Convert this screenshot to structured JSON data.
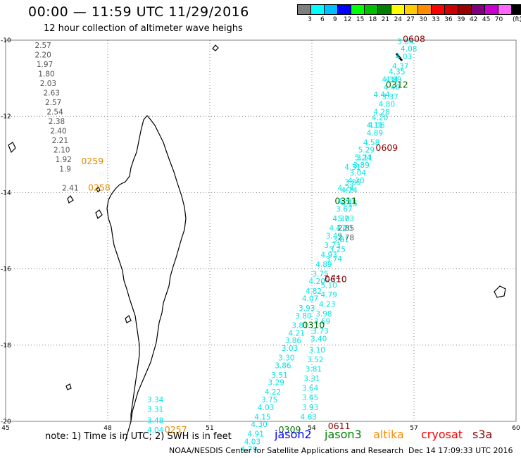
{
  "header": {
    "title": "00:00 — 11:59 UTC 11/29/2016",
    "subtitle": "12 hour collection of altimeter wave heighs"
  },
  "scale": {
    "colors": [
      "#7f7f7f",
      "#00ffff",
      "#00bfff",
      "#0000ff",
      "#00ff00",
      "#00c000",
      "#008000",
      "#ffff00",
      "#ffcc00",
      "#ff8c00",
      "#ff0000",
      "#cc0000",
      "#990000",
      "#800080",
      "#cc00cc",
      "#ff66ff",
      "#000000"
    ],
    "labels": [
      "3",
      "6",
      "9",
      "12",
      "15",
      "18",
      "21",
      "24",
      "27",
      "30",
      "33",
      "36",
      "39",
      "42",
      "45",
      "70"
    ],
    "unit": "(ft)"
  },
  "map": {
    "lat_labels": [
      "-10",
      "-12",
      "-14",
      "-16",
      "-18",
      "-20"
    ],
    "lon_labels": [
      "45",
      "48",
      "51",
      "54",
      "57",
      "60"
    ],
    "coastline_color": "#000000",
    "grid_color": "#7f7f7f"
  },
  "tracks": [
    {
      "satellite": "jason2",
      "color": "#00e5e5",
      "label": "",
      "points": [
        {
          "lon": 56.75,
          "lat": -10.1,
          "v": "3.84"
        },
        {
          "lon": 56.85,
          "lat": -10.3,
          "v": "4.08"
        },
        {
          "lon": 56.7,
          "lat": -10.5,
          "v": "4.03"
        },
        {
          "lon": 56.6,
          "lat": -10.75,
          "v": "4.37"
        },
        {
          "lon": 56.5,
          "lat": -10.9,
          "v": "4.35"
        },
        {
          "lon": 56.4,
          "lat": -11.1,
          "v": "4.89"
        },
        {
          "lon": 56.35,
          "lat": -11.3,
          "v": "4.40"
        },
        {
          "lon": 56.3,
          "lat": -11.55,
          "v": "3.37"
        },
        {
          "lon": 56.2,
          "lat": -11.75,
          "v": "4.80"
        },
        {
          "lon": 56.05,
          "lat": -11.95,
          "v": "4.28"
        },
        {
          "lon": 56.0,
          "lat": -12.1,
          "v": "4.20"
        },
        {
          "lon": 55.9,
          "lat": -12.3,
          "v": "4.06"
        },
        {
          "lon": 55.85,
          "lat": -12.5,
          "v": "4.89"
        },
        {
          "lon": 55.75,
          "lat": -12.75,
          "v": "4.58"
        },
        {
          "lon": 55.6,
          "lat": -12.95,
          "v": "5.29"
        },
        {
          "lon": 55.55,
          "lat": -13.15,
          "v": "3.11"
        },
        {
          "lon": 55.45,
          "lat": -13.35,
          "v": "3.89"
        },
        {
          "lon": 55.35,
          "lat": -13.55,
          "v": "3.04"
        },
        {
          "lon": 55.3,
          "lat": -13.75,
          "v": "4.20"
        },
        {
          "lon": 55.0,
          "lat": -13.95,
          "v": "4.24"
        },
        {
          "lon": 55.1,
          "lat": -14.35,
          "v": "4.15"
        },
        {
          "lon": 55.0,
          "lat": -14.75,
          "v": "5.03"
        },
        {
          "lon": 54.95,
          "lat": -15.0,
          "v": "4.20"
        },
        {
          "lon": 54.85,
          "lat": -15.3,
          "v": "3.81"
        },
        {
          "lon": 54.75,
          "lat": -15.55,
          "v": "3.25"
        },
        {
          "lon": 54.65,
          "lat": -15.8,
          "v": "3.74"
        },
        {
          "lon": 54.5,
          "lat": -16.5,
          "v": "5.10"
        },
        {
          "lon": 54.5,
          "lat": -16.75,
          "v": "4.79"
        },
        {
          "lon": 54.45,
          "lat": -17.0,
          "v": "4.23"
        },
        {
          "lon": 54.35,
          "lat": -17.25,
          "v": "3.98"
        },
        {
          "lon": 54.3,
          "lat": -17.45,
          "v": "3.69"
        },
        {
          "lon": 54.25,
          "lat": -17.7,
          "v": "3.73"
        },
        {
          "lon": 54.2,
          "lat": -17.9,
          "v": "3.40"
        },
        {
          "lon": 54.15,
          "lat": -18.2,
          "v": "3.10"
        },
        {
          "lon": 54.1,
          "lat": -18.45,
          "v": "3.52"
        },
        {
          "lon": 54.05,
          "lat": -18.7,
          "v": "3.81"
        },
        {
          "lon": 54.0,
          "lat": -18.95,
          "v": "3.31"
        },
        {
          "lon": 53.95,
          "lat": -19.2,
          "v": "3.64"
        },
        {
          "lon": 53.95,
          "lat": -19.45,
          "v": "3.65"
        },
        {
          "lon": 53.95,
          "lat": -19.7,
          "v": "3.93"
        },
        {
          "lon": 53.9,
          "lat": -19.95,
          "v": "4.63"
        }
      ]
    },
    {
      "satellite": "jason2-b",
      "color": "#00e5e5",
      "label": "",
      "points": [
        {
          "lon": 56.3,
          "lat": -11.1,
          "v": "4.34"
        },
        {
          "lon": 56.05,
          "lat": -11.5,
          "v": "4.44"
        },
        {
          "lon": 55.85,
          "lat": -12.3,
          "v": "4.11"
        },
        {
          "lon": 55.5,
          "lat": -13.15,
          "v": "5.24"
        },
        {
          "lon": 55.2,
          "lat": -13.4,
          "v": "4.31"
        },
        {
          "lon": 55.2,
          "lat": -13.8,
          "v": "3.85"
        },
        {
          "lon": 55.1,
          "lat": -14.0,
          "v": "4.24"
        },
        {
          "lon": 55.0,
          "lat": -14.3,
          "v": "4.50"
        },
        {
          "lon": 54.95,
          "lat": -14.5,
          "v": "3.67"
        },
        {
          "lon": 54.85,
          "lat": -14.75,
          "v": "4.37"
        },
        {
          "lon": 54.75,
          "lat": -15.0,
          "v": "4.17"
        },
        {
          "lon": 54.65,
          "lat": -15.2,
          "v": "3.49"
        },
        {
          "lon": 54.6,
          "lat": -15.45,
          "v": "3.73"
        },
        {
          "lon": 54.5,
          "lat": -15.7,
          "v": "4.93"
        },
        {
          "lon": 54.35,
          "lat": -15.95,
          "v": "4.89"
        },
        {
          "lon": 54.25,
          "lat": -16.2,
          "v": "3.75"
        },
        {
          "lon": 54.15,
          "lat": -16.4,
          "v": "4.20"
        },
        {
          "lon": 54.05,
          "lat": -16.65,
          "v": "4.82"
        },
        {
          "lon": 53.95,
          "lat": -16.85,
          "v": "4.07"
        },
        {
          "lon": 53.85,
          "lat": -17.1,
          "v": "3.93"
        },
        {
          "lon": 53.75,
          "lat": -17.3,
          "v": "3.80"
        },
        {
          "lon": 53.65,
          "lat": -17.55,
          "v": "3.81"
        },
        {
          "lon": 53.55,
          "lat": -17.75,
          "v": "4.21"
        },
        {
          "lon": 53.45,
          "lat": -17.95,
          "v": "3.86"
        },
        {
          "lon": 53.35,
          "lat": -18.15,
          "v": "3.03"
        },
        {
          "lon": 53.25,
          "lat": -18.4,
          "v": "3.30"
        },
        {
          "lon": 53.15,
          "lat": -18.6,
          "v": "3.86"
        },
        {
          "lon": 53.05,
          "lat": -18.85,
          "v": "3.51"
        },
        {
          "lon": 52.95,
          "lat": -19.05,
          "v": "3.29"
        },
        {
          "lon": 52.85,
          "lat": -19.3,
          "v": "4.22"
        },
        {
          "lon": 52.75,
          "lat": -19.5,
          "v": "3.75"
        },
        {
          "lon": 52.65,
          "lat": -19.7,
          "v": "4.03"
        },
        {
          "lon": 52.55,
          "lat": -19.95,
          "v": "4.15"
        },
        {
          "lon": 52.45,
          "lat": -20.15,
          "v": "4.30"
        },
        {
          "lon": 52.35,
          "lat": -20.4,
          "v": "4.91"
        },
        {
          "lon": 52.25,
          "lat": -20.6,
          "v": "4.03"
        },
        {
          "lon": 52.15,
          "lat": -20.8,
          "v": "4.79"
        }
      ]
    }
  ],
  "gray_track": [
    {
      "lon": 46.1,
      "lat": -10.2,
      "v": "2.57"
    },
    {
      "lon": 46.1,
      "lat": -10.45,
      "v": "2.20"
    },
    {
      "lon": 46.15,
      "lat": -10.7,
      "v": "1.97"
    },
    {
      "lon": 46.2,
      "lat": -10.95,
      "v": "1.80"
    },
    {
      "lon": 46.25,
      "lat": -11.2,
      "v": "2.03"
    },
    {
      "lon": 46.35,
      "lat": -11.45,
      "v": "2.63"
    },
    {
      "lon": 46.4,
      "lat": -11.7,
      "v": "2.57"
    },
    {
      "lon": 46.45,
      "lat": -11.95,
      "v": "2.54"
    },
    {
      "lon": 46.5,
      "lat": -12.2,
      "v": "2.38"
    },
    {
      "lon": 46.55,
      "lat": -12.45,
      "v": "2.40"
    },
    {
      "lon": 46.6,
      "lat": -12.7,
      "v": "2.21"
    },
    {
      "lon": 46.65,
      "lat": -12.95,
      "v": "2.10"
    },
    {
      "lon": 46.7,
      "lat": -13.2,
      "v": "1.92"
    },
    {
      "lon": 46.75,
      "lat": -13.45,
      "v": "1.9"
    },
    {
      "lon": 46.9,
      "lat": -13.95,
      "v": "2.41"
    },
    {
      "lon": 55.0,
      "lat": -15.0,
      "v": "2.85"
    },
    {
      "lon": 55.0,
      "lat": -15.25,
      "v": "2.78"
    },
    {
      "lon": 54.6,
      "lat": -16.3,
      "v": "2.74"
    }
  ],
  "south_cyan": [
    {
      "lon": 49.4,
      "lat": -19.5,
      "v": "3.34"
    },
    {
      "lon": 49.4,
      "lat": -19.75,
      "v": "3.31"
    },
    {
      "lon": 49.4,
      "lat": -20.05,
      "v": "3.48"
    },
    {
      "lon": 49.4,
      "lat": -20.3,
      "v": "4.04"
    }
  ],
  "time_labels": [
    {
      "lon": 57.0,
      "lat": -10.05,
      "v": "0608",
      "color": "#8b0000"
    },
    {
      "lon": 56.5,
      "lat": -11.25,
      "v": "0312",
      "color": "#007000"
    },
    {
      "lon": 56.2,
      "lat": -12.9,
      "v": "0609",
      "color": "#8b0000"
    },
    {
      "lon": 55.0,
      "lat": -14.3,
      "v": "0311",
      "color": "#007000"
    },
    {
      "lon": 54.7,
      "lat": -16.35,
      "v": "0610",
      "color": "#8b0000"
    },
    {
      "lon": 54.05,
      "lat": -17.55,
      "v": "0310",
      "color": "#007000"
    },
    {
      "lon": 53.35,
      "lat": -20.3,
      "v": "0309",
      "color": "#007000"
    },
    {
      "lon": 54.8,
      "lat": -20.2,
      "v": "0611",
      "color": "#8b0000"
    },
    {
      "lon": 47.55,
      "lat": -13.25,
      "v": "0259",
      "color": "#e68a00"
    },
    {
      "lon": 47.75,
      "lat": -13.95,
      "v": "0258",
      "color": "#e68a00"
    },
    {
      "lon": 50.0,
      "lat": -20.3,
      "v": "0257",
      "color": "#e68a00"
    }
  ],
  "footer": {
    "note": "note: 1) Time is in UTC; 2) SWH is in feet",
    "legend": [
      {
        "name": "jason2",
        "color": "#0000ff"
      },
      {
        "name": "jason3",
        "color": "#008000"
      },
      {
        "name": "altika",
        "color": "#ff8c00"
      },
      {
        "name": "cryosat",
        "color": "#ff0000"
      },
      {
        "name": "s3a",
        "color": "#8b0000"
      }
    ],
    "credit": "NOAA/NESDIS Center for Satellite Applications and Research",
    "timestamp": "Dec 14 17:09:33 UTC 2016"
  }
}
